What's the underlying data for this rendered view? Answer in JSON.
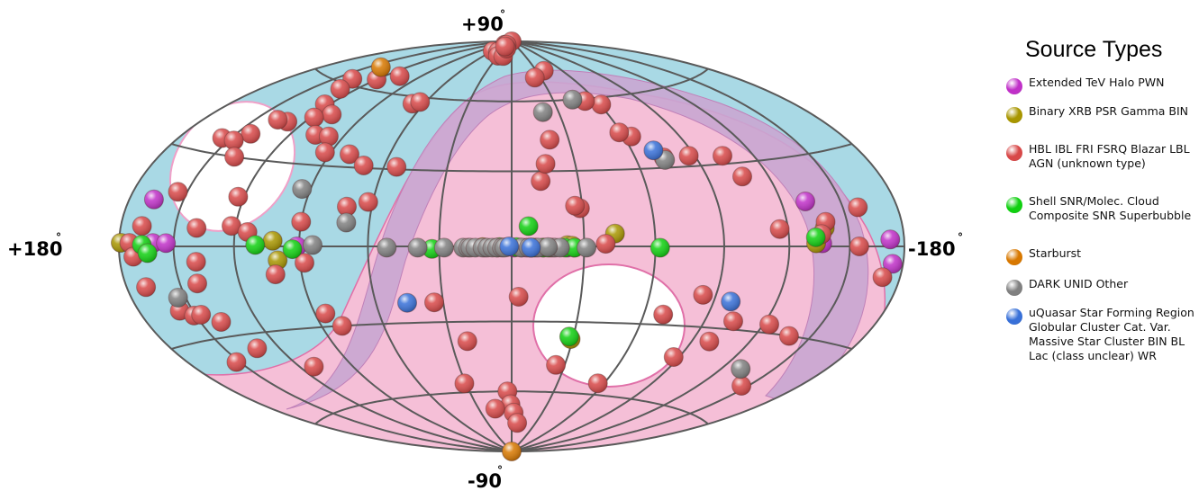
{
  "chart_data": {
    "type": "scatter",
    "title": "",
    "projection": "Hammer-Aitoff, galactic coordinates",
    "xlabel": "",
    "ylabel": "",
    "xlim": [
      180,
      -180
    ],
    "ylim": [
      -90,
      90
    ],
    "grid": true,
    "axis_labels": {
      "top": "+90",
      "bottom": "-90",
      "left": "+180",
      "right": "-180",
      "degree": "°"
    },
    "legend": {
      "title": "Source Types",
      "placement": "right",
      "entries": [
        {
          "label": "Extended TeV Halo PWN",
          "color": "#c030c8"
        },
        {
          "label": "Binary XRB PSR Gamma BIN",
          "color": "#a89600"
        },
        {
          "label": "HBL IBL FRI FSRQ Blazar LBL AGN (unknown type)",
          "color": "#d84848"
        },
        {
          "label": "Shell SNR/Molec. Cloud Composite SNR Superbubble",
          "color": "#10d010"
        },
        {
          "label": "Starburst",
          "color": "#d87800"
        },
        {
          "label": "DARK UNID Other",
          "color": "#808080"
        },
        {
          "label": "uQuasar Star Forming Region Globular Cluster Cat. Var. Massive Star Cluster BIN BL Lac (class unclear) WR",
          "color": "#3870d8"
        }
      ]
    },
    "series": [
      {
        "name": "Extended TeV Halo PWN",
        "color": "#c030c8",
        "points": [
          [
            166,
            14
          ],
          [
            161,
            1
          ],
          [
            154,
            1
          ],
          [
            91,
            0
          ],
          [
            11,
            -0.5
          ],
          [
            -1,
            -0.5
          ],
          [
            -4,
            -0.5
          ],
          [
            -6,
            -0.5
          ],
          [
            -8,
            -0.5
          ],
          [
            -10,
            -0.5
          ],
          [
            -13,
            -0.5
          ],
          [
            -23,
            -0.5
          ],
          [
            -26,
            -0.5
          ],
          [
            -132,
            15
          ],
          [
            -136,
            1
          ],
          [
            -172,
            2
          ],
          [
            -174,
            -5
          ]
        ]
      },
      {
        "name": "Binary XRB PSR Gamma BIN",
        "color": "#a89600",
        "points": [
          [
            179,
            1
          ],
          [
            102,
            2
          ],
          [
            100,
            -5
          ],
          [
            12,
            -0.3
          ],
          [
            2,
            -0.3
          ],
          [
            -23,
            0.5
          ],
          [
            -25,
            0.3
          ],
          [
            -43,
            5
          ],
          [
            -29,
            -37
          ],
          [
            -133,
            1
          ],
          [
            -138,
            6
          ]
        ]
      },
      {
        "name": "HBL IBL FRI FSRQ Blazar LBL AGN (unknown type)",
        "color": "#d84848",
        "points": [
          [
            108,
            67
          ],
          [
            58,
            84
          ],
          [
            59,
            88
          ],
          [
            47,
            88
          ],
          [
            50,
            90
          ],
          [
            43,
            88
          ],
          [
            41,
            84
          ],
          [
            31,
            82
          ],
          [
            19,
            82
          ],
          [
            23,
            86
          ],
          [
            39,
            87
          ],
          [
            120,
            64
          ],
          [
            138,
            62
          ],
          [
            131,
            58
          ],
          [
            123,
            52
          ],
          [
            130,
            44
          ],
          [
            110,
            49
          ],
          [
            118,
            47
          ],
          [
            106,
            41
          ],
          [
            98,
            41
          ],
          [
            68,
            57
          ],
          [
            64,
            58
          ],
          [
            93,
            35
          ],
          [
            54,
            31
          ],
          [
            137,
            44
          ],
          [
            142,
            38
          ],
          [
            155,
            35
          ],
          [
            147,
            35
          ],
          [
            138,
            30
          ],
          [
            155,
            17
          ],
          [
            80,
            35
          ],
          [
            70,
            31
          ],
          [
            71,
            15
          ],
          [
            62,
            17
          ],
          [
            123,
            17
          ],
          [
            90,
            9
          ],
          [
            168,
            6
          ],
          [
            174,
            1
          ],
          [
            139,
            6
          ],
          [
            122,
            7
          ],
          [
            114,
            5
          ],
          [
            172,
            -3
          ],
          [
            139,
            -5
          ],
          [
            169,
            -12
          ],
          [
            141,
            -12
          ],
          [
            102,
            -10
          ],
          [
            157,
            -20
          ],
          [
            151,
            -22
          ],
          [
            147,
            -22
          ],
          [
            139,
            -25
          ],
          [
            152,
            -38
          ],
          [
            132,
            -35
          ],
          [
            112,
            -44
          ],
          [
            85,
            -25
          ],
          [
            88,
            -6
          ],
          [
            80,
            -30
          ],
          [
            34,
            -22
          ],
          [
            22,
            -38
          ],
          [
            3,
            -60
          ],
          [
            1,
            -66
          ],
          [
            -2,
            -70
          ],
          [
            -7,
            -75
          ],
          [
            15,
            -68
          ],
          [
            31,
            -56
          ],
          [
            -25,
            -48
          ],
          [
            -56,
            -55
          ],
          [
            -87,
            -42
          ],
          [
            -99,
            -35
          ],
          [
            -104,
            -27
          ],
          [
            -123,
            -27
          ],
          [
            -138,
            -30
          ],
          [
            -146,
            -48
          ],
          [
            -84,
            -18
          ],
          [
            -69,
            -26
          ],
          [
            -3,
            -20
          ],
          [
            -170,
            -9
          ],
          [
            -158,
            12
          ],
          [
            -139,
            8
          ],
          [
            -136,
            4
          ],
          [
            -116,
            6
          ],
          [
            -107,
            25
          ],
          [
            -104,
            33
          ],
          [
            -87,
            34
          ],
          [
            -74,
            34
          ],
          [
            -64,
            43
          ],
          [
            -59,
            45
          ],
          [
            -61,
            57
          ],
          [
            -52,
            59
          ],
          [
            -39,
            74
          ],
          [
            -24,
            71
          ],
          [
            -20,
            43
          ],
          [
            -13,
            26
          ],
          [
            -16,
            33
          ],
          [
            -29,
            15
          ],
          [
            -27,
            16
          ],
          [
            -8,
            -0.5
          ],
          [
            -39,
            1
          ],
          [
            -155,
            0
          ]
        ]
      },
      {
        "name": "Shell SNR/Molec. Cloud Composite SNR Superbubble",
        "color": "#10d010",
        "points": [
          [
            167,
            0.5
          ],
          [
            164,
            -2
          ],
          [
            110,
            0.5
          ],
          [
            93,
            -1
          ],
          [
            33,
            -1
          ],
          [
            6,
            -0.5
          ],
          [
            5,
            -0.3
          ],
          [
            -2,
            -0.3
          ],
          [
            -8,
            -0.5
          ],
          [
            -9,
            -0.5
          ],
          [
            -13,
            -0.5
          ],
          [
            -16,
            -0.5
          ],
          [
            -22,
            -0.5
          ],
          [
            -26,
            -0.5
          ],
          [
            -15,
            -0.5
          ],
          [
            -62,
            -0.5
          ],
          [
            -7,
            8
          ],
          [
            -28,
            -36
          ],
          [
            -133,
            3
          ]
        ]
      },
      {
        "name": "Starburst",
        "color": "#d87800",
        "points": [
          [
            141,
            68
          ],
          [
            0,
            -90
          ]
        ]
      },
      {
        "name": "DARK UNID Other",
        "color": "#808080",
        "points": [
          [
            154,
            -16
          ],
          [
            94,
            21
          ],
          [
            70,
            9
          ],
          [
            52,
            -0.5
          ],
          [
            39,
            -0.5
          ],
          [
            28,
            -0.5
          ],
          [
            20,
            -0.5
          ],
          [
            18,
            -0.5
          ],
          [
            17,
            -0.5
          ],
          [
            15,
            -0.5
          ],
          [
            12,
            -0.5
          ],
          [
            10,
            -0.5
          ],
          [
            8,
            -0.5
          ],
          [
            6,
            -0.5
          ],
          [
            4,
            -0.5
          ],
          [
            3,
            -0.5
          ],
          [
            -4,
            -0.5
          ],
          [
            -7,
            -0.5
          ],
          [
            -11,
            -0.5
          ],
          [
            -17,
            -0.5
          ],
          [
            -18,
            -0.5
          ],
          [
            -20,
            -0.5
          ],
          [
            -31,
            -0.5
          ],
          [
            -15,
            -0.3
          ],
          [
            -44,
            60
          ],
          [
            -20,
            55
          ],
          [
            -74,
            33
          ],
          [
            -131,
            -43
          ],
          [
            84,
            0.5
          ]
        ]
      },
      {
        "name": "uQuasar Star Forming Region Globular Cluster Cat. Var. Massive Star Cluster BIN BL Lac (class unclear) WR",
        "color": "#3870d8",
        "points": [
          [
            46,
            -22
          ],
          [
            1,
            0
          ],
          [
            -98,
            -20
          ],
          [
            -71,
            37
          ],
          [
            -8,
            -0.5
          ]
        ]
      }
    ]
  }
}
